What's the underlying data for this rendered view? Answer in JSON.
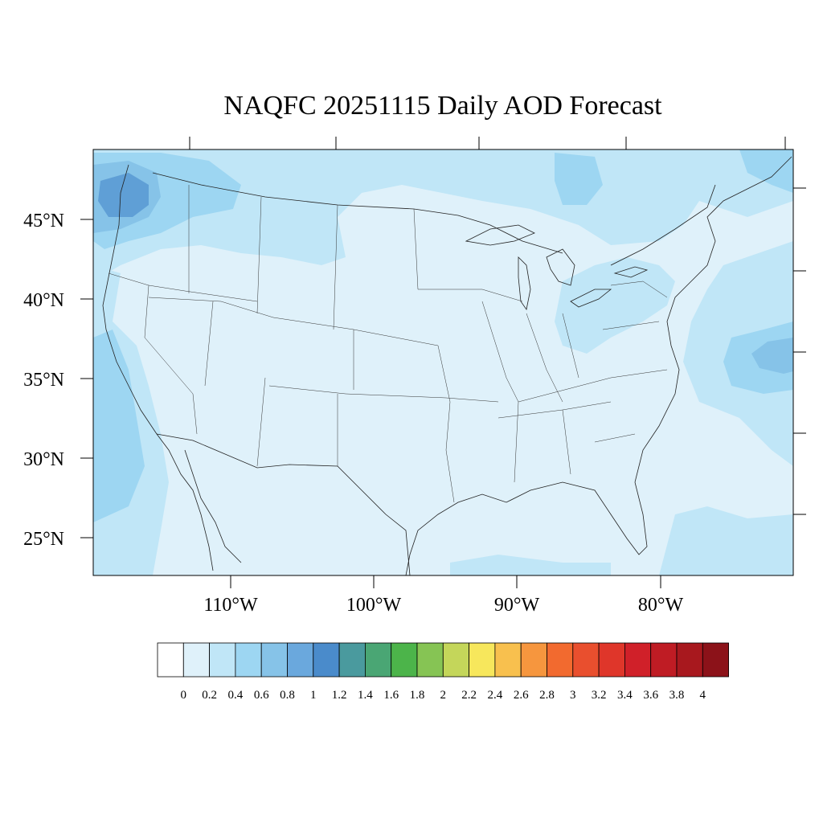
{
  "title": "NAQFC 20251115 Daily AOD Forecast",
  "map": {
    "projection": "Lambert conformal conic",
    "region": "Contiguous United States",
    "latitude_labels": [
      "45°N",
      "40°N",
      "35°N",
      "30°N",
      "25°N"
    ],
    "longitude_labels": [
      "110°W",
      "100°W",
      "90°W",
      "80°W"
    ],
    "field": {
      "variable": "Aerosol Optical Depth",
      "colors": {
        "land_background": "#dff1fa",
        "level_0_4": "#c0e6f7",
        "level_0_6": "#9dd6f2",
        "level_0_8": "#86c3e8",
        "level_1_0": "#5f9fd6"
      }
    }
  },
  "colorbar": {
    "labels": [
      "0",
      "0.2",
      "0.4",
      "0.6",
      "0.8",
      "1",
      "1.2",
      "1.4",
      "1.6",
      "1.8",
      "2",
      "2.2",
      "2.4",
      "2.6",
      "2.8",
      "3",
      "3.2",
      "3.4",
      "3.6",
      "3.8",
      "4"
    ],
    "colors": [
      "#ffffff",
      "#dff1fa",
      "#c0e6f7",
      "#9dd6f2",
      "#86c3e8",
      "#6aa8dd",
      "#4a8bcb",
      "#4a9a9e",
      "#4aa674",
      "#4cb44a",
      "#86c454",
      "#c4d65a",
      "#f7e75c",
      "#f8c04e",
      "#f6963e",
      "#f26a2f",
      "#e94f2e",
      "#df362a",
      "#d02029",
      "#bf1c24",
      "#a8181e",
      "#8c1219"
    ]
  }
}
